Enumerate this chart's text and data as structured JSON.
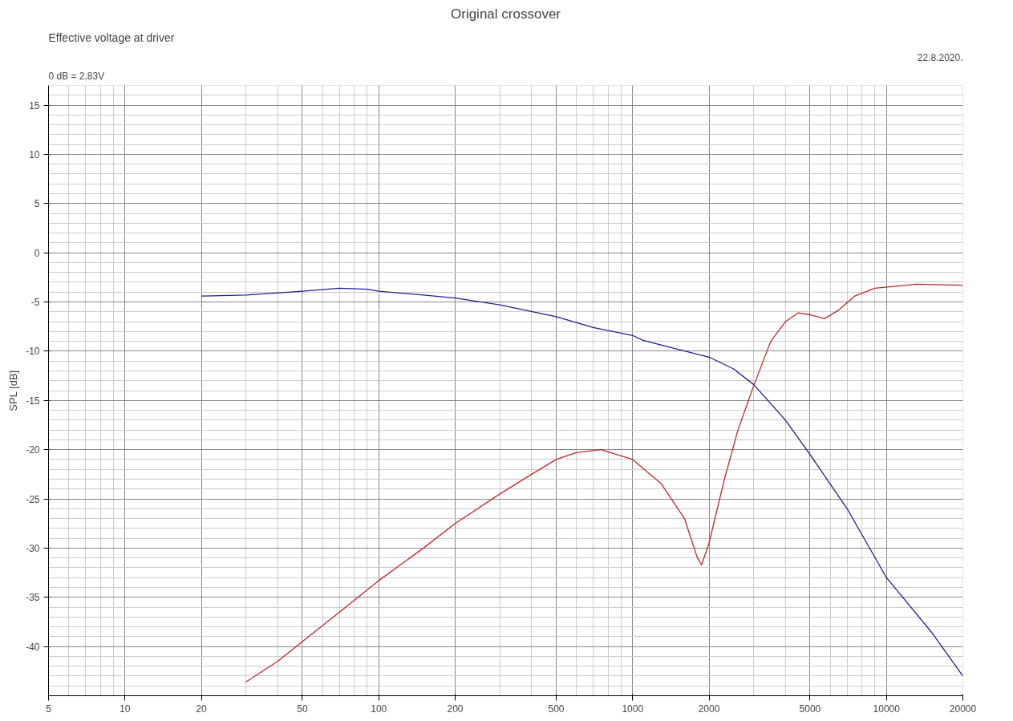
{
  "chart_data": {
    "type": "line",
    "title": "Original crossover",
    "subtitle": "Effective voltage at driver",
    "ylabel": "SPL [dB]",
    "annotations": [
      "0 dB = 2,83V",
      "22.8.2020."
    ],
    "log": "x",
    "xlim": [
      5,
      20000
    ],
    "xticks": [
      5,
      10,
      20,
      50,
      100,
      200,
      500,
      1000,
      2000,
      5000,
      10000,
      20000
    ],
    "ylim": [
      -45,
      17
    ],
    "yticks": [
      -40,
      -35,
      -30,
      -25,
      -20,
      -15,
      -10,
      -5,
      0,
      5,
      10,
      15
    ],
    "grid": true,
    "series": [
      {
        "color": "#1f1f8f",
        "x": [
          20,
          30,
          50,
          70,
          90,
          100,
          150,
          200,
          300,
          500,
          700,
          1000,
          1100,
          1500,
          2000,
          2500,
          3000,
          4000,
          5000,
          7000,
          10000,
          15000,
          20000
        ],
        "values": [
          -4.4,
          -4.3,
          -3.9,
          -3.6,
          -3.7,
          -3.9,
          -4.3,
          -4.6,
          -5.3,
          -6.5,
          -7.6,
          -8.4,
          -8.9,
          -9.8,
          -10.6,
          -11.8,
          -13.4,
          -17,
          -20.5,
          -26,
          -33,
          -38.5,
          -43
        ]
      },
      {
        "color": "#c0282a",
        "x": [
          30,
          40,
          50,
          70,
          100,
          150,
          200,
          300,
          400,
          500,
          600,
          750,
          1000,
          1300,
          1600,
          1800,
          1870,
          2000,
          2300,
          2600,
          3000,
          3500,
          4000,
          4500,
          5000,
          5700,
          6500,
          7500,
          9000,
          12000,
          13000,
          20000
        ],
        "values": [
          -43.6,
          -41.5,
          -39.5,
          -36.5,
          -33.3,
          -30,
          -27.5,
          -24.5,
          -22.5,
          -21,
          -20.3,
          -20,
          -21,
          -23.5,
          -27,
          -31,
          -31.7,
          -29.5,
          -23,
          -18,
          -13.5,
          -9,
          -7,
          -6.1,
          -6.3,
          -6.7,
          -5.8,
          -4.4,
          -3.6,
          -3.3,
          -3.2,
          -3.3
        ]
      }
    ]
  }
}
